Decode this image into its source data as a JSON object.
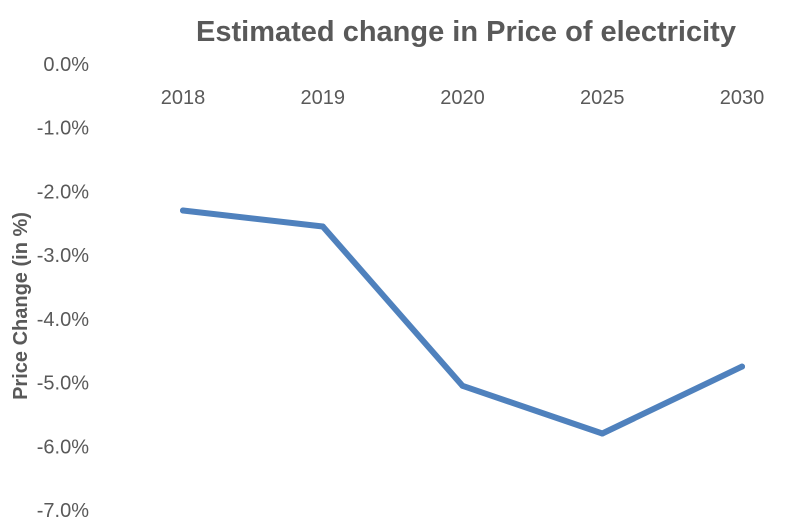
{
  "chart_data": {
    "type": "line",
    "title": "Estimated change in Price of electricity",
    "xlabel": "",
    "ylabel": "Price Change (in %)",
    "categories": [
      "2018",
      "2019",
      "2020",
      "2025",
      "2030"
    ],
    "series": [
      {
        "values": [
          -2.3,
          -2.55,
          -5.05,
          -5.8,
          -4.75
        ],
        "color": "#4f81bd"
      }
    ],
    "ylim": [
      -7.0,
      0.0
    ],
    "yticks": [
      0.0,
      -1.0,
      -2.0,
      -3.0,
      -4.0,
      -5.0,
      -6.0,
      -7.0
    ],
    "ytick_labels": [
      "0.0%",
      "-1.0%",
      "-2.0%",
      "-3.0%",
      "-4.0%",
      "-5.0%",
      "-6.0%",
      "-7.0%"
    ],
    "x_axis_position": "top",
    "grid": false,
    "legend": "none"
  }
}
